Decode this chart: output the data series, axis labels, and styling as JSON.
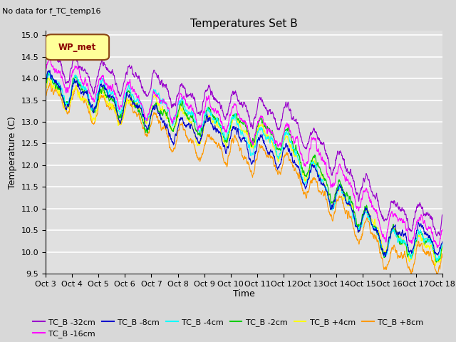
{
  "title": "Temperatures Set B",
  "subtitle": "No data for f_TC_temp16",
  "xlabel": "Time",
  "ylabel": "Temperature (C)",
  "ylim": [
    9.5,
    15.1
  ],
  "yticks": [
    9.5,
    10.0,
    10.5,
    11.0,
    11.5,
    12.0,
    12.5,
    13.0,
    13.5,
    14.0,
    14.5,
    15.0
  ],
  "xtick_labels": [
    "Oct 3",
    "Oct 4",
    "Oct 5",
    "Oct 6",
    "Oct 7",
    "Oct 8",
    "Oct 9",
    "Oct 10",
    "Oct 11",
    "Oct 12",
    "Oct 13",
    "Oct 14",
    "Oct 15",
    "Oct 16",
    "Oct 17",
    "Oct 18"
  ],
  "series_colors": {
    "TC_B -32cm": "#9900cc",
    "TC_B -16cm": "#ff00ff",
    "TC_B -8cm": "#0000cc",
    "TC_B -4cm": "#00ffff",
    "TC_B -2cm": "#00cc00",
    "TC_B +4cm": "#ffff00",
    "TC_B +8cm": "#ff9900"
  },
  "legend_label": "WP_met",
  "legend_box_color": "#ffff99",
  "background_color": "#e0e0e0",
  "grid_color": "#ffffff",
  "fig_bg": "#d8d8d8",
  "n_points": 2000
}
